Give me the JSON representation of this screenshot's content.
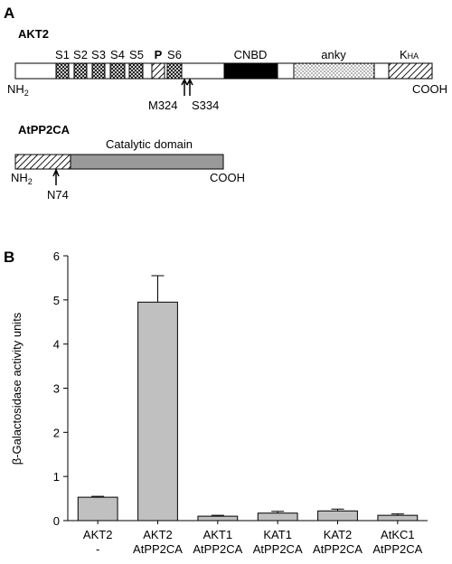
{
  "panel_a": {
    "label": "A",
    "akt2": {
      "title": "AKT2",
      "segments": [
        "S1",
        "S2",
        "S3",
        "S4",
        "S5",
        "P",
        "S6",
        "CNBD",
        "anky"
      ],
      "kha": {
        "main": "K",
        "sub": "HA"
      },
      "n_term": {
        "main": "NH",
        "sub": "2"
      },
      "c_term": "COOH",
      "sites": [
        "M324",
        "S334"
      ]
    },
    "atpp2ca": {
      "title": "AtPP2CA",
      "domain": "Catalytic domain",
      "n_term": {
        "main": "NH",
        "sub": "2"
      },
      "c_term": "COOH",
      "site": "N74"
    }
  },
  "panel_b": {
    "label": "B"
  },
  "chart_data": {
    "type": "bar",
    "ylabel": "β-Galactosidase activity units",
    "categories": [
      [
        "AKT2",
        "-"
      ],
      [
        "AKT2",
        "AtPP2CA"
      ],
      [
        "AKT1",
        "AtPP2CA"
      ],
      [
        "KAT1",
        "AtPP2CA"
      ],
      [
        "KAT2",
        "AtPP2CA"
      ],
      [
        "AtKC1",
        "AtPP2CA"
      ]
    ],
    "values": [
      0.53,
      4.95,
      0.1,
      0.17,
      0.22,
      0.12
    ],
    "errors": [
      0.02,
      0.6,
      0.02,
      0.04,
      0.04,
      0.03
    ],
    "color": "#c0c0c0",
    "ylim": [
      0,
      6
    ],
    "yticks": [
      0,
      1,
      2,
      3,
      4,
      5,
      6
    ]
  }
}
